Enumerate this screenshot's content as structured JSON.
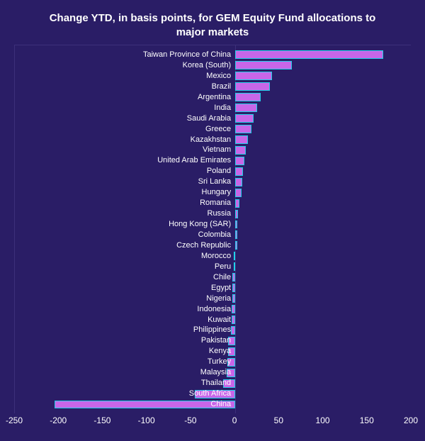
{
  "chart": {
    "type": "bar-horizontal-diverging",
    "title": "Change YTD, in basis points, for GEM Equity Fund allocations to major markets",
    "title_fontsize": 15,
    "title_color": "#ffffff",
    "background_color": "#2a1d66",
    "plot_border_color": "#3d2f7a",
    "bar_fill_color": "#c866e8",
    "bar_stroke_color": "#20d0e8",
    "label_color": "#ffffff",
    "label_fontsize": 11,
    "tick_color": "#ffffff",
    "tick_fontsize": 12,
    "zero_line_color": "#3d2f7a",
    "xlim": [
      -250,
      200
    ],
    "xticks": [
      -250,
      -200,
      -150,
      -100,
      -50,
      0,
      50,
      100,
      150,
      200
    ],
    "data": [
      {
        "label": "Taiwan Province of China",
        "value": 168
      },
      {
        "label": "Korea (South)",
        "value": 64
      },
      {
        "label": "Mexico",
        "value": 42
      },
      {
        "label": "Brazil",
        "value": 39
      },
      {
        "label": "Argentina",
        "value": 29
      },
      {
        "label": "India",
        "value": 25
      },
      {
        "label": "Saudi Arabia",
        "value": 21
      },
      {
        "label": "Greece",
        "value": 18
      },
      {
        "label": "Kazakhstan",
        "value": 14
      },
      {
        "label": "Vietnam",
        "value": 12
      },
      {
        "label": "United Arab Emirates",
        "value": 10
      },
      {
        "label": "Poland",
        "value": 9
      },
      {
        "label": "Sri Lanka",
        "value": 8
      },
      {
        "label": "Hungary",
        "value": 7
      },
      {
        "label": "Romania",
        "value": 5
      },
      {
        "label": "Russia",
        "value": 3
      },
      {
        "label": "Hong Kong (SAR)",
        "value": 2
      },
      {
        "label": "Colombia",
        "value": 2
      },
      {
        "label": "Czech Republic",
        "value": 2
      },
      {
        "label": "Morocco",
        "value": -2
      },
      {
        "label": "Peru",
        "value": -2
      },
      {
        "label": "Chile",
        "value": -3
      },
      {
        "label": "Egypt",
        "value": -3
      },
      {
        "label": "Nigeria",
        "value": -3
      },
      {
        "label": "Indonesia",
        "value": -4
      },
      {
        "label": "Kuwait",
        "value": -4
      },
      {
        "label": "Philippines",
        "value": -5
      },
      {
        "label": "Pakistan",
        "value": -8
      },
      {
        "label": "Kenya",
        "value": -8
      },
      {
        "label": "Turkey",
        "value": -9
      },
      {
        "label": "Malaysia",
        "value": -10
      },
      {
        "label": "Thailand",
        "value": -14
      },
      {
        "label": "South Africa",
        "value": -46
      },
      {
        "label": "China",
        "value": -205
      }
    ]
  }
}
